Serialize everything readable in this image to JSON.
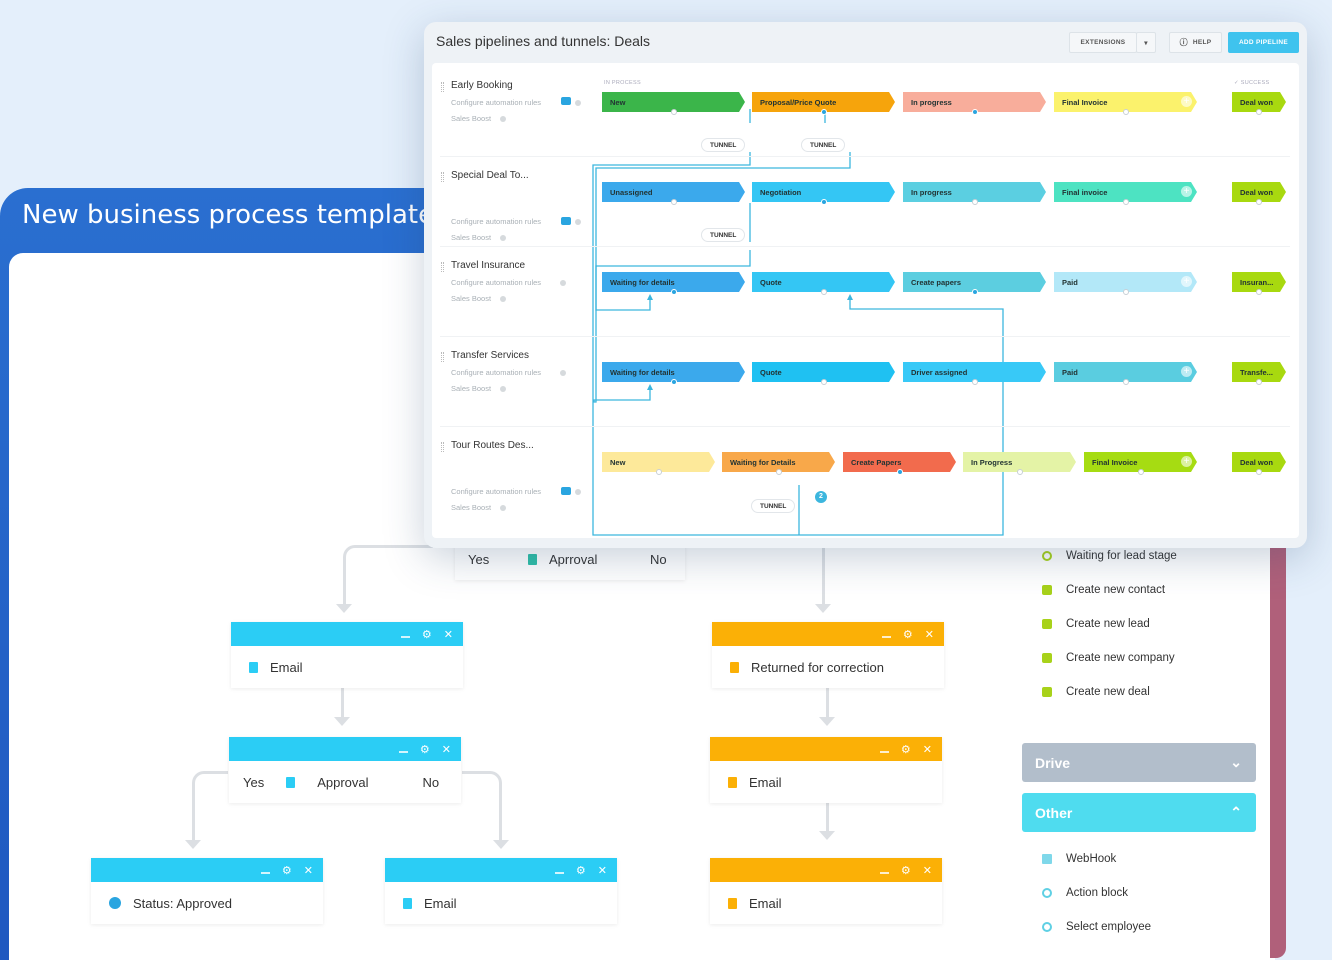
{
  "background": {
    "template_title": "New business process template"
  },
  "pipeline_card": {
    "title": "Sales pipelines and tunnels: Deals",
    "extensions_label": "EXTENSIONS",
    "help_label": "HELP",
    "add_pipeline_label": "ADD PIPELINE",
    "in_process_label": "IN PROCESS",
    "success_label": "✓ SUCCESS",
    "configure_label": "Configure automation rules",
    "sales_boost_label": "Sales Boost",
    "tunnel_label": "TUNNEL",
    "tunnel_badge": "2",
    "accent_color": "#3fc3ee",
    "pipelines": [
      {
        "name": "Early Booking",
        "robot": true,
        "stages": [
          {
            "label": "New",
            "color": "#3bb54a",
            "active": false
          },
          {
            "label": "Proposal/Price Quote",
            "color": "#f6a40c",
            "active": true
          },
          {
            "label": "In progress",
            "color": "#f8ad9b",
            "active": true
          },
          {
            "label": "Final Invoice",
            "color": "#fbf26c",
            "active": false
          }
        ],
        "success": {
          "label": "Deal won",
          "color": "#a8d90f"
        }
      },
      {
        "name": "Special Deal To...",
        "robot": true,
        "stages": [
          {
            "label": "Unassigned",
            "color": "#3ba9ec",
            "active": false
          },
          {
            "label": "Negotiation",
            "color": "#34c6f4",
            "active": true
          },
          {
            "label": "In progress",
            "color": "#5bcfe1",
            "active": false
          },
          {
            "label": "Final invoice",
            "color": "#4de3c2",
            "active": false
          }
        ],
        "success": {
          "label": "Deal won",
          "color": "#a8d90f"
        }
      },
      {
        "name": "Travel Insurance",
        "robot": false,
        "stages": [
          {
            "label": "Waiting for details",
            "color": "#3ba9ec",
            "active": true
          },
          {
            "label": "Quote",
            "color": "#34c6f4",
            "active": false
          },
          {
            "label": "Create papers",
            "color": "#5ccee0",
            "active": true
          },
          {
            "label": "Paid",
            "color": "#b3e8f8",
            "active": false
          }
        ],
        "success": {
          "label": "Insuran...",
          "color": "#a8d90f"
        }
      },
      {
        "name": "Transfer Services",
        "robot": false,
        "stages": [
          {
            "label": "Waiting for details",
            "color": "#3ba9ec",
            "active": true
          },
          {
            "label": "Quote",
            "color": "#1fc1f2",
            "active": false
          },
          {
            "label": "Driver assigned",
            "color": "#38c9f7",
            "active": false
          },
          {
            "label": "Paid",
            "color": "#5acde0",
            "active": false
          }
        ],
        "success": {
          "label": "Transfe...",
          "color": "#a8d90f"
        }
      },
      {
        "name": "Tour Routes Des...",
        "robot": true,
        "stages": [
          {
            "label": "New",
            "color": "#fde99a",
            "active": false
          },
          {
            "label": "Waiting for Details",
            "color": "#f8a84a",
            "active": false
          },
          {
            "label": "Create Papers",
            "color": "#f26b4d",
            "active": true
          },
          {
            "label": "In Progress",
            "color": "#e4f3a6",
            "active": false
          },
          {
            "label": "Final Invoice",
            "color": "#a6dc12",
            "active": false
          }
        ],
        "success": {
          "label": "Deal won",
          "color": "#a8d90f"
        }
      }
    ]
  },
  "flow": {
    "top_condition": {
      "yes": "Yes",
      "label": "Aprroval",
      "no": "No"
    },
    "blue_color": "#2bcdf5",
    "orange_color": "#fbb006",
    "email_label": "Email",
    "approval": {
      "yes": "Yes",
      "label": "Approval",
      "no": "No"
    },
    "status_label": "Status: Approved",
    "returned_label": "Returned for correction"
  },
  "right_panel": {
    "items_top": [
      {
        "label": "Waiting for lead stage",
        "icon": "clock-icon"
      },
      {
        "label": "Create new contact",
        "icon": "contact-icon"
      },
      {
        "label": "Create new lead",
        "icon": "lead-icon"
      },
      {
        "label": "Create new company",
        "icon": "company-icon"
      },
      {
        "label": "Create new deal",
        "icon": "funnel-icon"
      }
    ],
    "drive_label": "Drive",
    "other_label": "Other",
    "items_other": [
      {
        "label": "WebHook",
        "icon": "document-icon"
      },
      {
        "label": "Action block",
        "icon": "clock-icon"
      },
      {
        "label": "Select employee",
        "icon": "clock-icon"
      }
    ]
  }
}
